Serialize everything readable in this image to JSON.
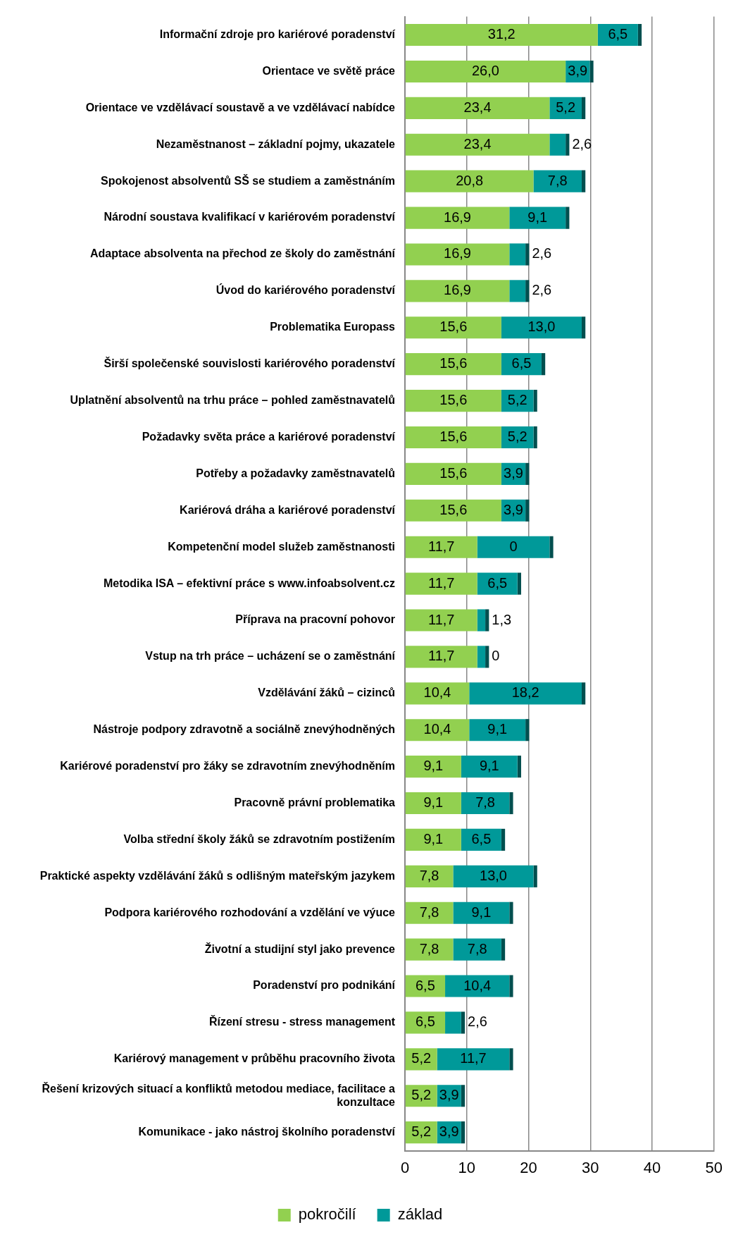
{
  "chart_data": {
    "type": "bar",
    "orientation": "horizontal",
    "stacked": true,
    "categories": [
      "Informační zdroje pro kariérové poradenství",
      "Orientace ve světě práce",
      "Orientace ve vzdělávací soustavě a ve vzdělávací nabídce",
      "Nezaměstnanost – základní pojmy, ukazatele",
      "Spokojenost absolventů SŠ se studiem a zaměstnáním",
      "Národní soustava kvalifikací v kariérovém poradenství",
      "Adaptace absolventa na přechod ze školy do zaměstnání",
      "Úvod do kariérového poradenství",
      "Problematika Europass",
      "Širší společenské souvislosti kariérového poradenství",
      "Uplatnění absolventů na trhu práce – pohled zaměstnavatelů",
      "Požadavky světa práce a kariérové poradenství",
      "Potřeby a požadavky zaměstnavatelů",
      "Kariérová dráha a kariérové poradenství",
      "Kompetenční model služeb zaměstnanosti",
      "Metodika ISA – efektivní práce s www.infoabsolvent.cz",
      "Příprava na pracovní pohovor",
      "Vstup na trh práce – ucházení se o zaměstnání",
      "Vzdělávání žáků – cizinců",
      "Nástroje podpory zdravotně a sociálně znevýhodněných",
      "Kariérové poradenství pro žáky se zdravotním znevýhodněním",
      "Pracovně právní problematika",
      "Volba střední školy žáků se zdravotním postižením",
      "Praktické aspekty vzdělávání žáků s odlišným mateřským jazykem",
      "Podpora kariérového rozhodování a vzdělání ve výuce",
      "Životní a studijní styl jako prevence",
      "Poradenství pro podnikání",
      "Řízení stresu - stress management",
      "Kariérový management v průběhu pracovního života",
      "Řešení krizových situací a konfliktů metodou mediace, facilitace a konzultace",
      "Komunikace - jako nástroj školního poradenství"
    ],
    "series": [
      {
        "name": "pokročilí",
        "color": "#92d050",
        "values": [
          31.2,
          26.0,
          23.4,
          23.4,
          20.8,
          16.9,
          16.9,
          16.9,
          15.6,
          15.6,
          15.6,
          15.6,
          15.6,
          15.6,
          11.7,
          11.7,
          11.7,
          11.7,
          10.4,
          10.4,
          9.1,
          9.1,
          9.1,
          7.8,
          7.8,
          7.8,
          6.5,
          6.5,
          5.2,
          5.2,
          5.2
        ],
        "value_labels": [
          "31,2",
          "26,0",
          "23,4",
          "23,4",
          "20,8",
          "16,9",
          "16,9",
          "16,9",
          "15,6",
          "15,6",
          "15,6",
          "15,6",
          "15,6",
          "15,6",
          "11,7",
          "11,7",
          "11,7",
          "11,7",
          "10,4",
          "10,4",
          "9,1",
          "9,1",
          "9,1",
          "7,8",
          "7,8",
          "7,8",
          "6,5",
          "6,5",
          "5,2",
          "5,2",
          "5,2"
        ]
      },
      {
        "name": "základ",
        "color": "#009999",
        "values": [
          6.5,
          3.9,
          5.2,
          2.6,
          7.8,
          9.1,
          2.6,
          2.6,
          13.0,
          6.5,
          5.2,
          5.2,
          3.9,
          3.9,
          11.7,
          6.5,
          1.3,
          1.3,
          18.2,
          9.1,
          9.1,
          7.8,
          6.5,
          13.0,
          9.1,
          7.8,
          10.4,
          2.6,
          11.7,
          3.9,
          3.9
        ],
        "value_labels": [
          "6,5",
          "3,9",
          "5,2",
          "2,6",
          "7,8",
          "9,1",
          "2,6",
          "2,6",
          "13,0",
          "6,5",
          "5,2",
          "5,2",
          "3,9",
          "3,9",
          null,
          "6,5",
          "1,3",
          null,
          "18,2",
          "9,1",
          "9,1",
          "7,8",
          "6,5",
          "13,0",
          "9,1",
          "7,8",
          "10,4",
          "2,6",
          "11,7",
          "3,9",
          "3,9"
        ]
      },
      {
        "color": "#024f4f",
        "values": [
          0.6,
          0.6,
          0.6,
          0.6,
          0.6,
          0.6,
          0.6,
          0.6,
          0.6,
          0.6,
          0.6,
          0.6,
          0.6,
          0.6,
          0.6,
          0.6,
          0.6,
          0.6,
          0.6,
          0.6,
          0.6,
          0.6,
          0.6,
          0.6,
          0.6,
          0.6,
          0.6,
          0.6,
          0.6,
          0.6,
          0.6
        ]
      }
    ],
    "xlim": [
      0,
      50
    ],
    "xticks": [
      0,
      10,
      20,
      30,
      40,
      50
    ],
    "grid": "x",
    "legend": "bottom",
    "annotations": [
      "0",
      "0"
    ]
  }
}
